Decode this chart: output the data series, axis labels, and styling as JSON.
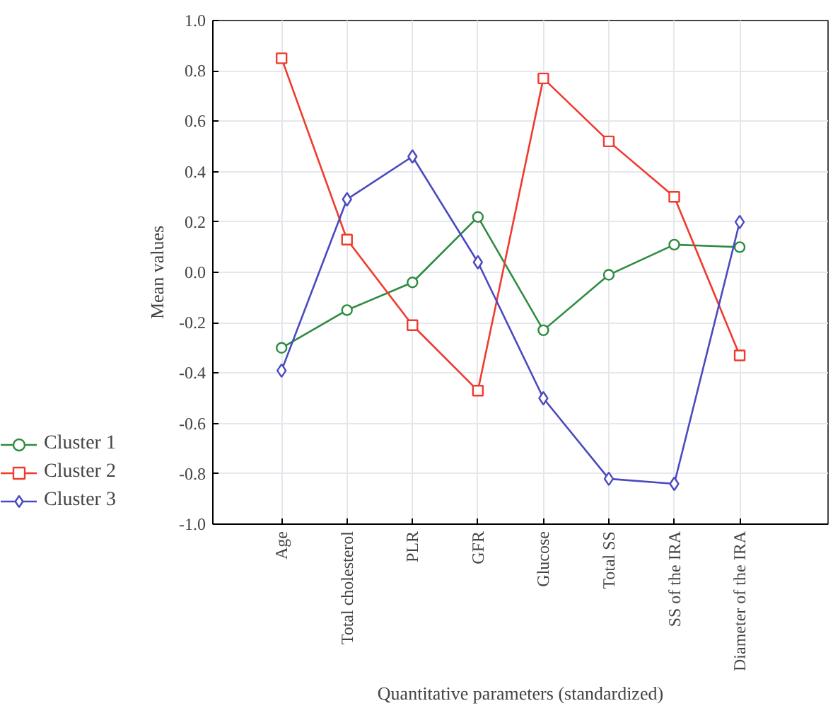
{
  "chart_data": {
    "type": "line",
    "xlabel": "Quantitative parameters (standardized)",
    "ylabel": "Mean values",
    "categories": [
      "Age",
      "Total cholesterol",
      "PLR",
      "GFR",
      "Glucose",
      "Total SS",
      "SS of the IRA",
      "Diameter of the IRA"
    ],
    "series": [
      {
        "name": "Cluster 1",
        "color": "#2e8b40",
        "marker": "circle",
        "values": [
          -0.3,
          -0.15,
          -0.04,
          0.22,
          -0.23,
          -0.01,
          0.11,
          0.1
        ]
      },
      {
        "name": "Cluster 2",
        "color": "#f03a2e",
        "marker": "square",
        "values": [
          0.85,
          0.13,
          -0.21,
          -0.47,
          0.77,
          0.52,
          0.3,
          -0.33
        ]
      },
      {
        "name": "Cluster 3",
        "color": "#4a4ac0",
        "marker": "diamond",
        "values": [
          -0.39,
          0.29,
          0.46,
          0.04,
          -0.5,
          -0.82,
          -0.84,
          0.2
        ]
      }
    ],
    "ylim": [
      -1.0,
      1.0
    ],
    "yticks": [
      {
        "value": -1.0,
        "label": "-1.0"
      },
      {
        "value": -0.8,
        "label": "-0.8"
      },
      {
        "value": -0.6,
        "label": "-0.6"
      },
      {
        "value": -0.4,
        "label": "-0.4"
      },
      {
        "value": -0.2,
        "label": "-0.2"
      },
      {
        "value": 0.0,
        "label": "0.0"
      },
      {
        "value": 0.2,
        "label": "0.2"
      },
      {
        "value": 0.4,
        "label": "0.4"
      },
      {
        "value": 0.6,
        "label": "0.6"
      },
      {
        "value": 0.8,
        "label": "0.8"
      },
      {
        "value": 1.0,
        "label": "1.0"
      }
    ],
    "grid": true,
    "legend": "bottom left",
    "line_style": "solid"
  }
}
